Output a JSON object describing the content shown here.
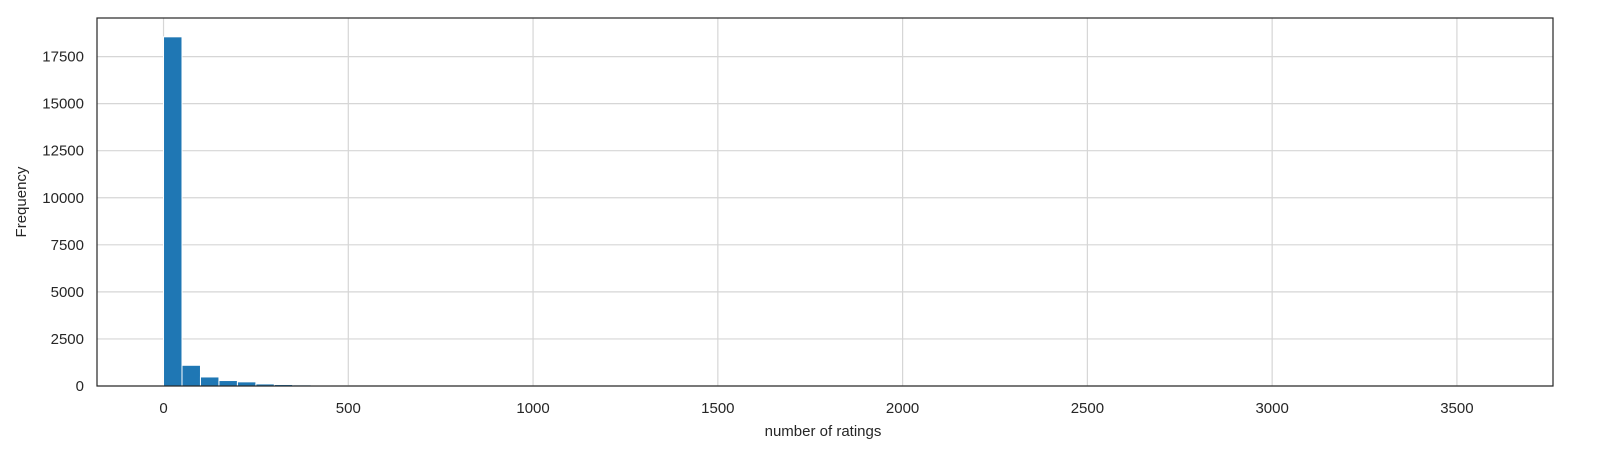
{
  "chart_data": {
    "type": "bar",
    "title": "",
    "xlabel": "number of ratings",
    "ylabel": "Frequency",
    "xlim": [
      -180,
      3760
    ],
    "ylim": [
      0,
      19550
    ],
    "x_ticks": [
      0,
      500,
      1000,
      1500,
      2000,
      2500,
      3000,
      3500
    ],
    "y_ticks": [
      0,
      2500,
      5000,
      7500,
      10000,
      12500,
      15000,
      17500
    ],
    "grid": true,
    "legend": "none",
    "bin_width": 50,
    "bin_edges": [
      0,
      50,
      100,
      150,
      200,
      250,
      300,
      350,
      400,
      450,
      500
    ],
    "values": [
      18550,
      1100,
      480,
      290,
      220,
      110,
      80,
      60,
      25,
      15
    ],
    "colors": {
      "bar": "#1f77b4",
      "grid": "#d6d6d6",
      "frame": "#262626",
      "text": "#262626"
    }
  }
}
